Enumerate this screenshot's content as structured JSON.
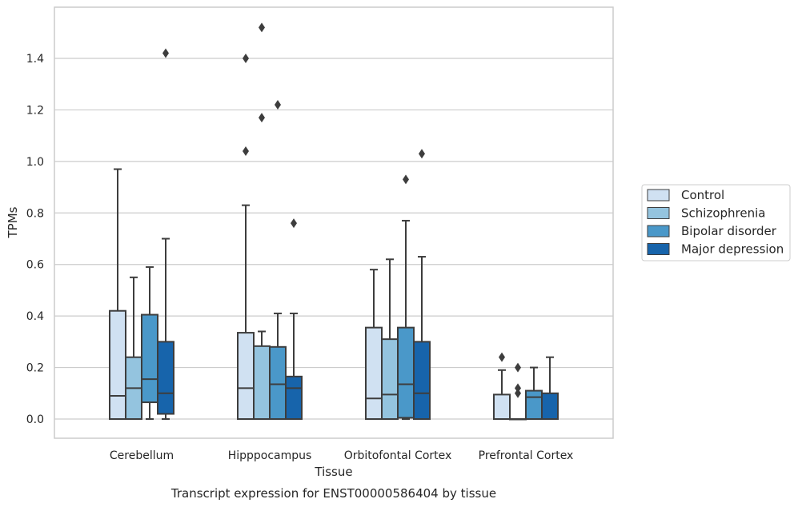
{
  "chart_data": {
    "type": "box",
    "title": "",
    "caption": "Transcript expression for ENST00000586404 by tissue",
    "xlabel": "Tissue",
    "ylabel": "TPMs",
    "ylim": [
      -0.075,
      1.6
    ],
    "yticks": [
      0.0,
      0.2,
      0.4,
      0.6,
      0.8,
      1.0,
      1.2,
      1.4
    ],
    "yticklabels": [
      "0.0",
      "0.2",
      "0.4",
      "0.6",
      "0.8",
      "1.0",
      "1.2",
      "1.4"
    ],
    "grid": true,
    "legend_position": "right",
    "categories": [
      "Cerebellum",
      "Hipppocampus",
      "Orbitofontal Cortex",
      "Prefrontal Cortex"
    ],
    "series": [
      {
        "name": "Control",
        "color": "#d0e1f2",
        "boxes": [
          {
            "low": 0.0,
            "q1": 0.0,
            "median": 0.09,
            "q3": 0.42,
            "high": 0.97,
            "outliers": []
          },
          {
            "low": 0.0,
            "q1": 0.0,
            "median": 0.12,
            "q3": 0.335,
            "high": 0.83,
            "outliers": [
              1.04,
              1.4
            ]
          },
          {
            "low": 0.0,
            "q1": 0.0,
            "median": 0.08,
            "q3": 0.355,
            "high": 0.58,
            "outliers": []
          },
          {
            "low": 0.0,
            "q1": 0.0,
            "median": 0.0,
            "q3": 0.095,
            "high": 0.19,
            "outliers": [
              0.24
            ]
          }
        ]
      },
      {
        "name": "Schizophrenia",
        "color": "#94c4df",
        "boxes": [
          {
            "low": 0.0,
            "q1": 0.0,
            "median": 0.12,
            "q3": 0.24,
            "high": 0.55,
            "outliers": []
          },
          {
            "low": 0.0,
            "q1": 0.0,
            "median": 0.0,
            "q3": 0.283,
            "high": 0.34,
            "outliers": [
              1.17,
              1.52
            ]
          },
          {
            "low": 0.0,
            "q1": 0.0,
            "median": 0.095,
            "q3": 0.31,
            "high": 0.62,
            "outliers": []
          },
          {
            "low": 0.0,
            "q1": 0.0,
            "median": 0.0,
            "q3": 0.0,
            "high": 0.0,
            "outliers": [
              0.1,
              0.12,
              0.2
            ]
          }
        ]
      },
      {
        "name": "Bipolar disorder",
        "color": "#4a98c9",
        "boxes": [
          {
            "low": 0.0,
            "q1": 0.065,
            "median": 0.155,
            "q3": 0.405,
            "high": 0.59,
            "outliers": []
          },
          {
            "low": 0.0,
            "q1": 0.0,
            "median": 0.135,
            "q3": 0.28,
            "high": 0.41,
            "outliers": [
              1.22
            ]
          },
          {
            "low": 0.0,
            "q1": 0.005,
            "median": 0.135,
            "q3": 0.355,
            "high": 0.77,
            "outliers": [
              0.93
            ]
          },
          {
            "low": 0.0,
            "q1": 0.0,
            "median": 0.085,
            "q3": 0.11,
            "high": 0.2,
            "outliers": []
          }
        ]
      },
      {
        "name": "Major depression",
        "color": "#1764ab",
        "boxes": [
          {
            "low": 0.0,
            "q1": 0.02,
            "median": 0.1,
            "q3": 0.3,
            "high": 0.7,
            "outliers": [
              1.42
            ]
          },
          {
            "low": 0.0,
            "q1": 0.0,
            "median": 0.12,
            "q3": 0.165,
            "high": 0.41,
            "outliers": [
              0.76
            ]
          },
          {
            "low": 0.0,
            "q1": 0.0,
            "median": 0.1,
            "q3": 0.3,
            "high": 0.63,
            "outliers": [
              1.03
            ]
          },
          {
            "low": 0.0,
            "q1": 0.0,
            "median": 0.0,
            "q3": 0.1,
            "high": 0.24,
            "outliers": []
          }
        ]
      }
    ]
  }
}
